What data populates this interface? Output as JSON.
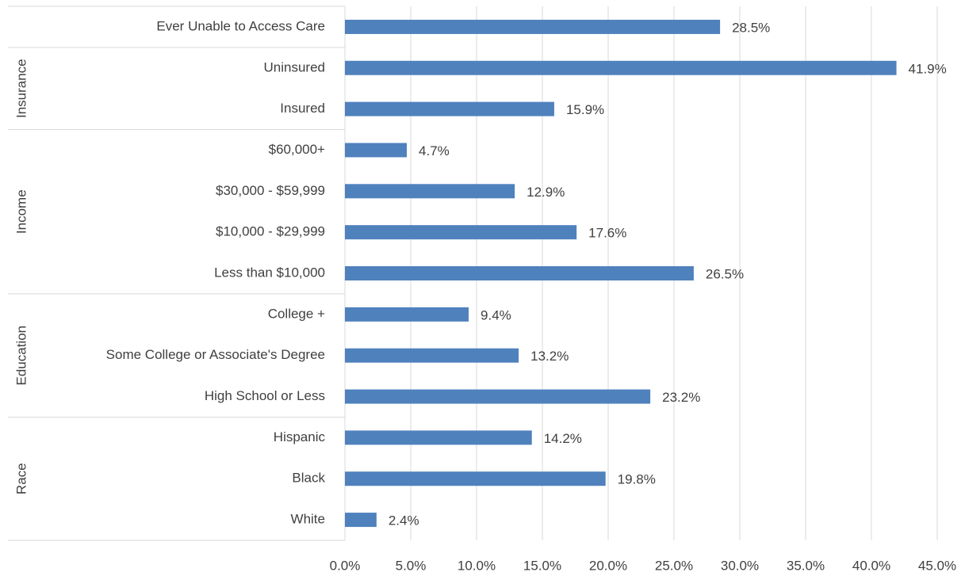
{
  "chart_data": {
    "type": "bar",
    "orientation": "horizontal",
    "categories": [
      "Ever Unable to Access Care",
      "Uninsured",
      "Insured",
      "$60,000+",
      "$30,000 - $59,999",
      "$10,000 - $29,999",
      "Less than $10,000",
      "College +",
      "Some College or Associate's Degree",
      "High School or Less",
      "Hispanic",
      "Black",
      "White"
    ],
    "category_groups": [
      null,
      "Insurance",
      "Insurance",
      "Income",
      "Income",
      "Income",
      "Income",
      "Education",
      "Education",
      "Education",
      "Race",
      "Race",
      "Race"
    ],
    "values": [
      28.5,
      41.9,
      15.9,
      4.7,
      12.9,
      17.6,
      26.5,
      9.4,
      13.2,
      23.2,
      14.2,
      19.8,
      2.4
    ],
    "value_labels": [
      "28.5%",
      "41.9%",
      "15.9%",
      "4.7%",
      "12.9%",
      "17.6%",
      "26.5%",
      "9.4%",
      "13.2%",
      "23.2%",
      "14.2%",
      "19.8%",
      "2.4%"
    ],
    "color": "#4f81bd",
    "xlim": [
      0,
      45
    ],
    "xticks": [
      {
        "value": 0,
        "label": "0.0%"
      },
      {
        "value": 5,
        "label": "5.0%"
      },
      {
        "value": 10,
        "label": "10.0%"
      },
      {
        "value": 15,
        "label": "15.0%"
      },
      {
        "value": 20,
        "label": "20.0%"
      },
      {
        "value": 25,
        "label": "25.0%"
      },
      {
        "value": 30,
        "label": "30.0%"
      },
      {
        "value": 35,
        "label": "35.0%"
      },
      {
        "value": 40,
        "label": "40.0%"
      },
      {
        "value": 45,
        "label": "45.0%"
      }
    ],
    "grid": true
  }
}
